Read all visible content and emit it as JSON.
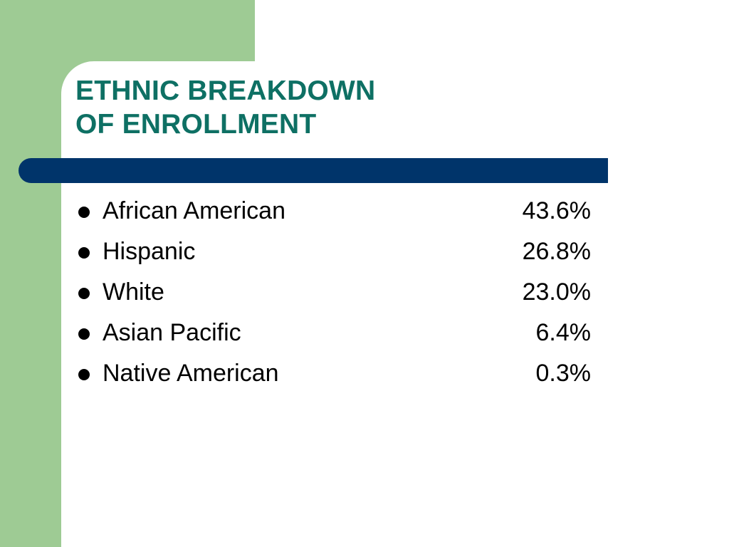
{
  "colors": {
    "green_panel": "#9ecb94",
    "title_teal": "#0e7064",
    "bar_navy": "#00346a",
    "text": "#000000"
  },
  "slide": {
    "title_line_1": "ETHNIC BREAKDOWN",
    "title_line_2": "OF ENROLLMENT",
    "items": [
      {
        "label": "African American",
        "value": "43.6%"
      },
      {
        "label": "Hispanic",
        "value": "26.8%"
      },
      {
        "label": "White",
        "value": "23.0%"
      },
      {
        "label": "Asian Pacific",
        "value": "6.4%"
      },
      {
        "label": "Native American",
        "value": "0.3%"
      }
    ]
  }
}
